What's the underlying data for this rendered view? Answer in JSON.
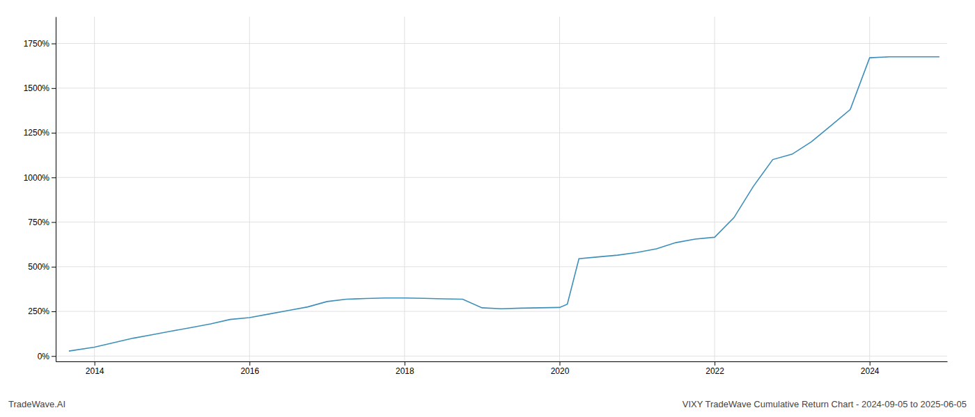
{
  "chart_data": {
    "type": "line",
    "title": "VIXY TradeWave Cumulative Return Chart - 2024-09-05 to 2025-06-05",
    "annotations": [
      "TradeWave.AI"
    ],
    "color": "#3d8fba",
    "grid": true,
    "xlim": [
      2013.5,
      2025.0
    ],
    "xticks": [
      2014,
      2016,
      2018,
      2020,
      2022,
      2024
    ],
    "ylim": [
      -30,
      1900
    ],
    "yticks": [
      {
        "value": 0,
        "label": "0%"
      },
      {
        "value": 250,
        "label": "250%"
      },
      {
        "value": 500,
        "label": "500%"
      },
      {
        "value": 750,
        "label": "750%"
      },
      {
        "value": 1000,
        "label": "1000%"
      },
      {
        "value": 1250,
        "label": "1250%"
      },
      {
        "value": 1500,
        "label": "1500%"
      },
      {
        "value": 1750,
        "label": "1750%"
      }
    ],
    "x": [
      2013.67,
      2014.0,
      2014.25,
      2014.5,
      2014.75,
      2015.0,
      2015.25,
      2015.5,
      2015.75,
      2016.0,
      2016.25,
      2016.5,
      2016.75,
      2017.0,
      2017.25,
      2017.5,
      2017.75,
      2018.0,
      2018.25,
      2018.5,
      2018.75,
      2019.0,
      2019.25,
      2019.5,
      2019.75,
      2020.0,
      2020.1,
      2020.25,
      2020.5,
      2020.75,
      2021.0,
      2021.25,
      2021.5,
      2021.75,
      2022.0,
      2022.25,
      2022.5,
      2022.75,
      2023.0,
      2023.25,
      2023.5,
      2023.75,
      2024.0,
      2024.25,
      2024.5,
      2024.75,
      2024.9
    ],
    "values": [
      28,
      50,
      75,
      100,
      120,
      140,
      160,
      180,
      205,
      215,
      235,
      255,
      275,
      305,
      318,
      322,
      325,
      325,
      323,
      320,
      318,
      270,
      265,
      268,
      270,
      272,
      290,
      545,
      555,
      565,
      580,
      600,
      635,
      655,
      665,
      775,
      950,
      1100,
      1130,
      1200,
      1290,
      1380,
      1670,
      1675,
      1675,
      1675,
      1675
    ]
  }
}
